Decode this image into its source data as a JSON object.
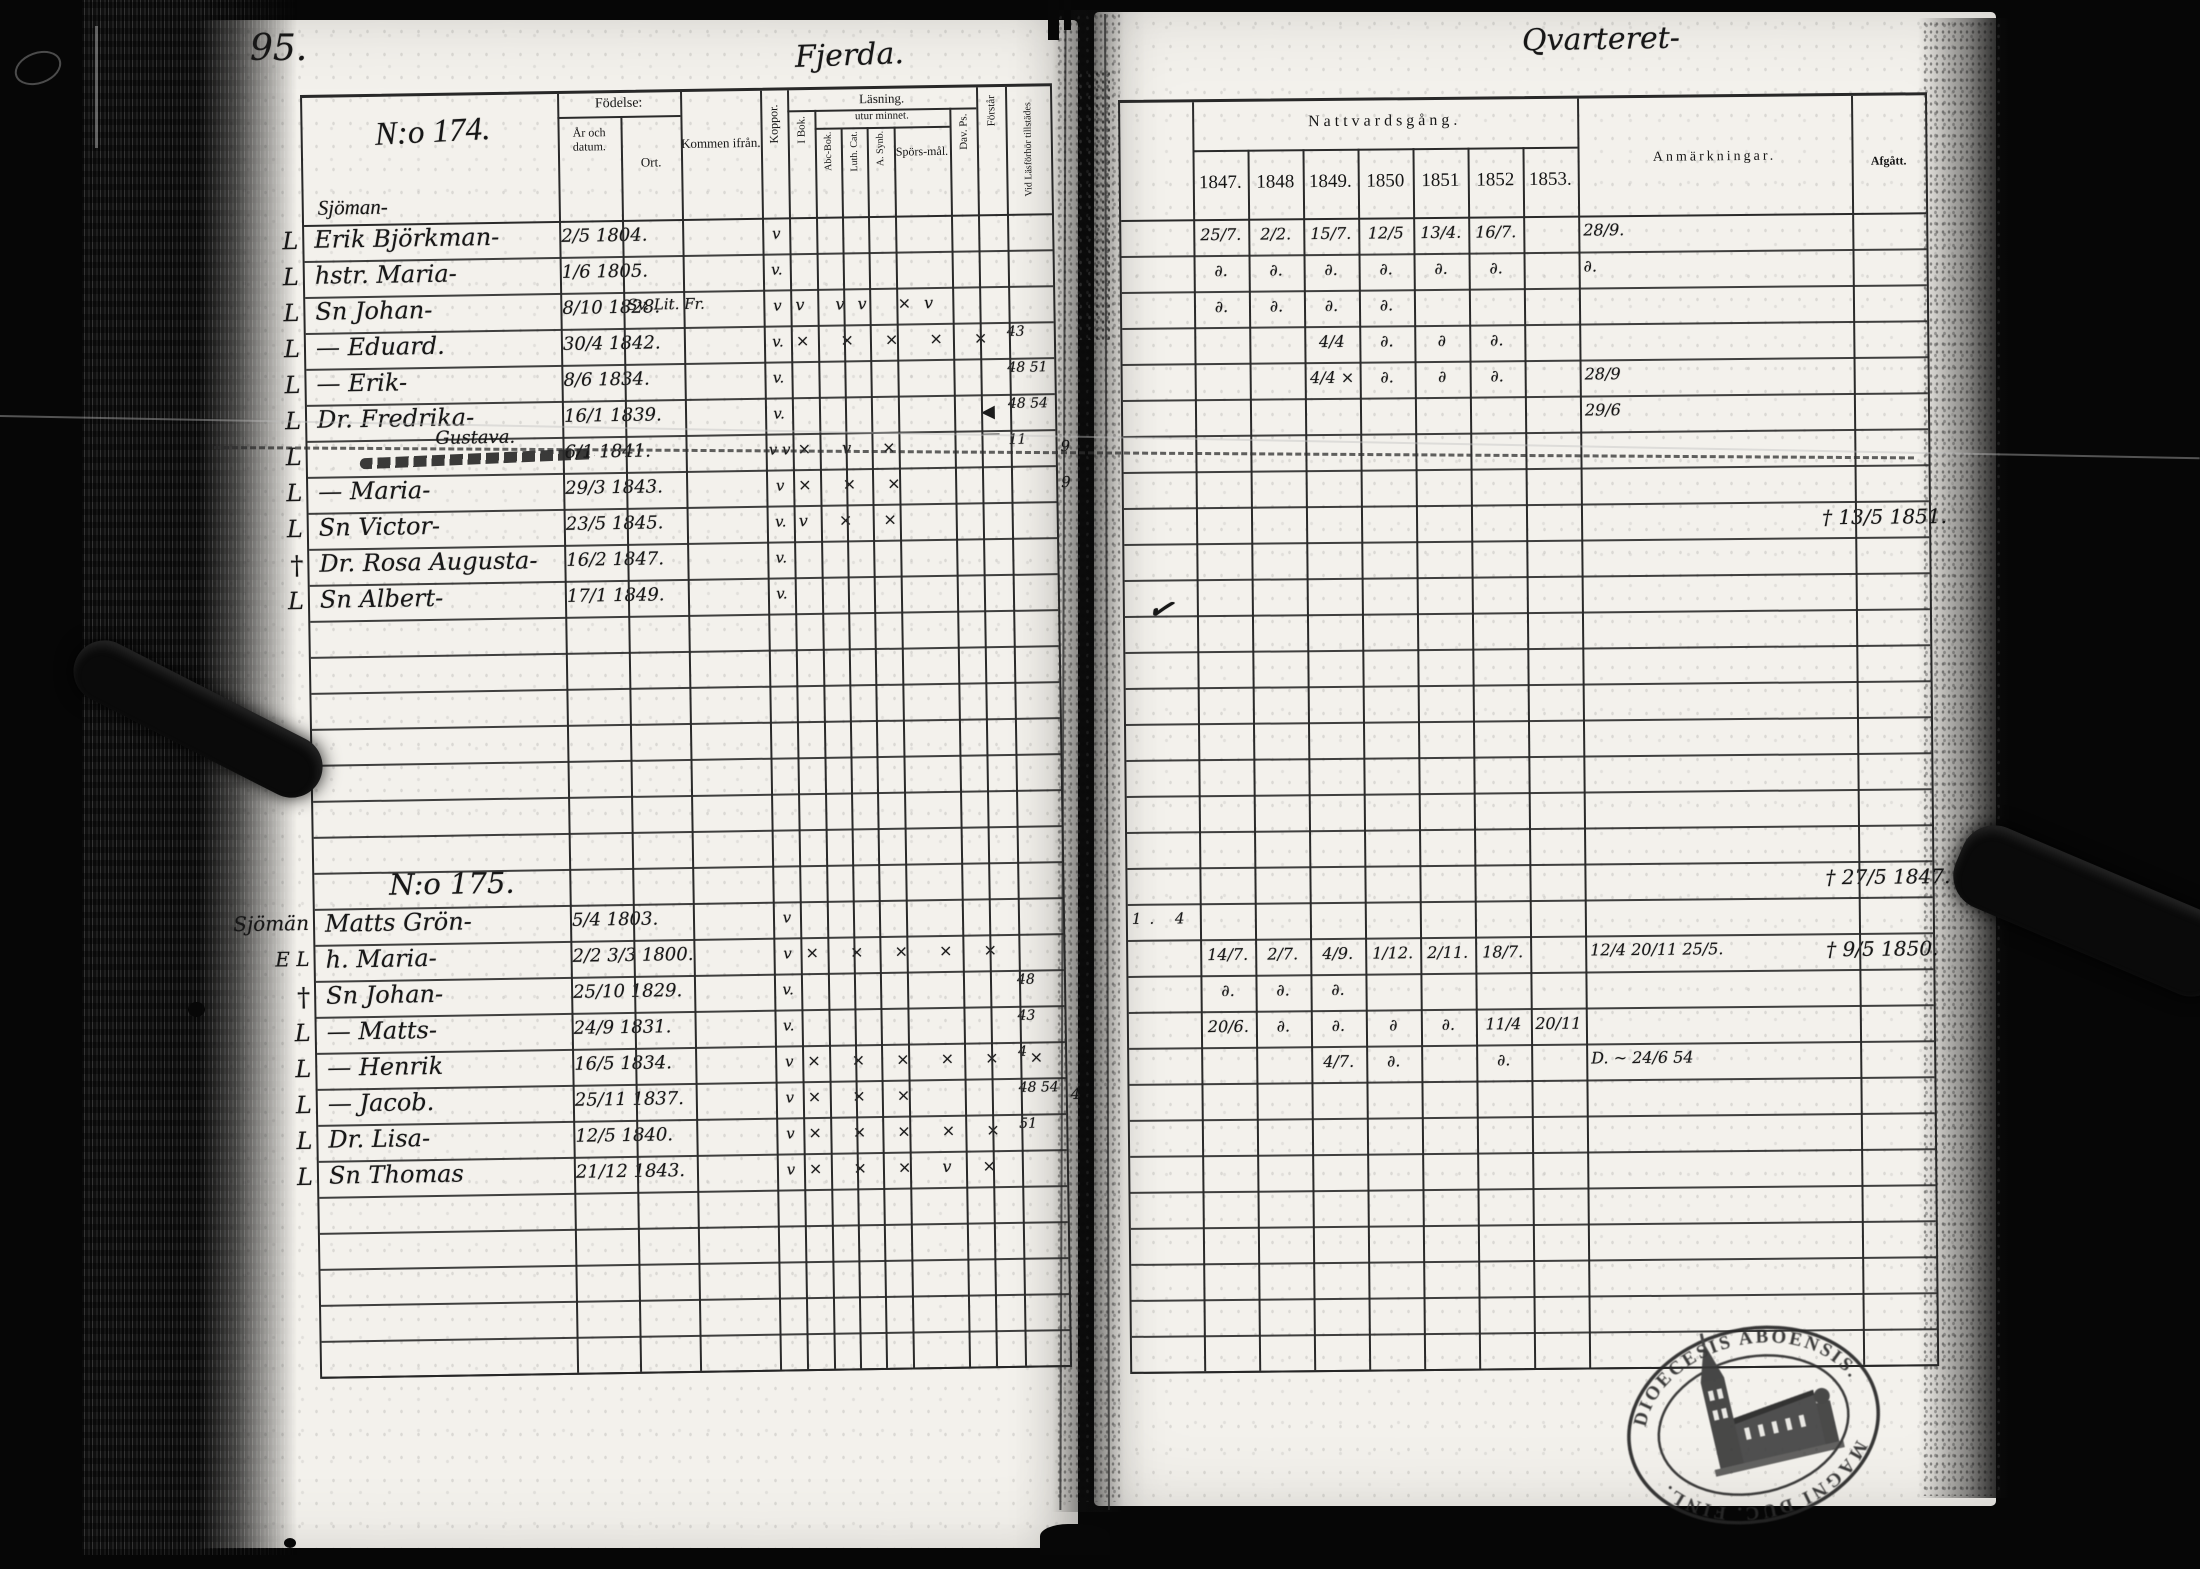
{
  "scan": {
    "page_number": "95.",
    "left_caption": "Fjerda.",
    "right_caption": "Qvarteret-"
  },
  "left_table": {
    "record_no": "N:o 174.",
    "occupation": "Sjöman-",
    "headers": {
      "fodelse": "Födelse:",
      "ar_och_datum": "År och datum.",
      "ort": "Ort.",
      "kommen_ifran": "Kommen ifrån.",
      "koppor": "Koppor.",
      "lasning": "Läsning.",
      "utur_minnet": "utur minnet.",
      "i_bok": "I Bok.",
      "abc_bok": "Abc-Bok.",
      "luth_cat": "Luth. Cat.",
      "a_synb": "A. Synb.",
      "sporsmal": "Spörs-mål.",
      "dav_ps": "Dav. Ps.",
      "forstar": "Förstår",
      "vid_lasforhor": "Vid Läsförhör tillstädes"
    }
  },
  "right_table": {
    "title": "Nattvardsgång.",
    "years": [
      "1847.",
      "1848",
      "1849.",
      "1850",
      "1851",
      "1852",
      "1853."
    ],
    "anmarkningar": "Anmärkningar.",
    "afgatt": "Afgått."
  },
  "rows": [
    {
      "t": "p",
      "m": "L",
      "n": "Erik Björkman-",
      "d": "2/5 1804.",
      "v": "v",
      "yr": [
        "25/7.",
        "2/2.",
        "15/7.",
        "12/5",
        "13/4.",
        "16/7.",
        ""
      ],
      "an": "28/9."
    },
    {
      "t": "p",
      "m": "L",
      "n": "hstr. Maria-",
      "d": "1/6 1805.",
      "v": "v.",
      "yr": [
        "∂.",
        "∂.",
        "∂.",
        "∂.",
        "∂.",
        "∂.",
        ""
      ],
      "an": "∂."
    },
    {
      "t": "p",
      "m": "L",
      "n": "Sn Johan-",
      "d": "8/10 1828.",
      "o": "Sv. Lit. Fr.",
      "v": "v",
      "mk": "v vv ×v",
      "yr": [
        "∂.",
        "∂.",
        "∂.",
        "∂.",
        "",
        "",
        ""
      ]
    },
    {
      "t": "p",
      "m": "L",
      "n": "— Eduard.",
      "d": "30/4 1842.",
      "v": "v.",
      "mk": "× × × ×  ×",
      "ti": "43",
      "yr": [
        "",
        "",
        "4/4",
        "∂.",
        "∂",
        "∂.",
        ""
      ]
    },
    {
      "t": "p",
      "m": "L",
      "n": "— Erik-",
      "d": "8/6 1834.",
      "v": "v.",
      "ti": "48 51",
      "yr": [
        "",
        "",
        "4/4 ×",
        "∂.",
        "∂",
        "∂.",
        ""
      ],
      "an": "28/9"
    },
    {
      "t": "p",
      "m": "L",
      "n": "Dr. Fredrika-",
      "d": "16/1 1839.",
      "v": "v.",
      "fl": true,
      "ti": "48 54",
      "an": "29/6"
    },
    {
      "t": "p",
      "m": "L",
      "st": true,
      "na": "Gustava.",
      "d": "6/1 1841.",
      "v": "v v",
      "mk": "× v ×",
      "ti": "11",
      "gu": "9"
    },
    {
      "t": "p",
      "m": "L",
      "n": "— Maria-",
      "d": "29/3 1843.",
      "v": "v",
      "mk": "× × ×",
      "gu": "9"
    },
    {
      "t": "p",
      "m": "L",
      "n": "Sn Victor-",
      "d": "23/5 1845.",
      "v": "v.",
      "mk": "v × ×",
      "af": "† 13/5 1851."
    },
    {
      "t": "p",
      "m": "†",
      "n": "Dr. Rosa Augusta-",
      "d": "16/2 1847.",
      "v": "v."
    },
    {
      "t": "p",
      "m": "L",
      "n": "Sn Albert-",
      "d": "17/1 1849.",
      "v": "v."
    },
    {
      "t": "b"
    },
    {
      "t": "b"
    },
    {
      "t": "b"
    },
    {
      "t": "b"
    },
    {
      "t": "b"
    },
    {
      "t": "b"
    },
    {
      "t": "b"
    },
    {
      "t": "s",
      "rec": "N:o 175.",
      "af": "† 27/5 1847."
    },
    {
      "t": "p",
      "m": "Sjömän",
      "n": "Matts Grön-",
      "d": "5/4 1803.",
      "v": "v",
      "co": "1. 4"
    },
    {
      "t": "p",
      "m": "E L",
      "n": "h. Maria-",
      "d": "2/2 3/3 1800.",
      "v": "v",
      "mk": "× × × × ×",
      "yr": [
        "14/7.",
        "2/7.",
        "4/9.",
        "1/12.",
        "2/11.",
        "18/7.",
        ""
      ],
      "an": "12/4 20/11 25/5.",
      "af": "† 9/5 1850."
    },
    {
      "t": "p",
      "m": "†",
      "n": "Sn Johan-",
      "d": "25/10 1829.",
      "v": "v.",
      "ti": "48",
      "yr": [
        "∂.",
        "∂.",
        "∂.",
        "",
        "",
        "",
        ""
      ]
    },
    {
      "t": "p",
      "m": "L",
      "n": "— Matts-",
      "d": "24/9 1831.",
      "v": "v.",
      "ti": "43",
      "yr": [
        "20/6.",
        "∂.",
        "∂.",
        "∂",
        "∂.",
        "11/4",
        "20/11"
      ]
    },
    {
      "t": "p",
      "m": "L",
      "n": "— Henrik",
      "d": "16/5 1834.",
      "v": "v",
      "mk": "× × × × × ×",
      "ti": "4",
      "yr": [
        "",
        "",
        "4/7.",
        "∂.",
        "",
        "∂.",
        ""
      ],
      "an": "D.  ~ 24/6 54"
    },
    {
      "t": "p",
      "m": "L",
      "n": "— Jacob.",
      "d": "25/11 1837.",
      "v": "v",
      "mk": "× × ×",
      "ti": "48 54",
      "gu": "4"
    },
    {
      "t": "p",
      "m": "L",
      "n": "Dr. Lisa-",
      "d": "12/5 1840.",
      "v": "v",
      "mk": "× × × × ×",
      "ti": "51"
    },
    {
      "t": "p",
      "m": "L",
      "n": "Sn Thomas",
      "d": "21/12 1843.",
      "v": "v",
      "mk": "× × × v ×"
    },
    {
      "t": "b"
    },
    {
      "t": "b"
    },
    {
      "t": "b"
    },
    {
      "t": "b"
    },
    {
      "t": "b"
    }
  ],
  "stray": {
    "check": "✓"
  },
  "stamp": {
    "arc_top": "DIOECESIS ABOENSIS.",
    "arc_bottom": "MAGNI DUC. FINL."
  }
}
